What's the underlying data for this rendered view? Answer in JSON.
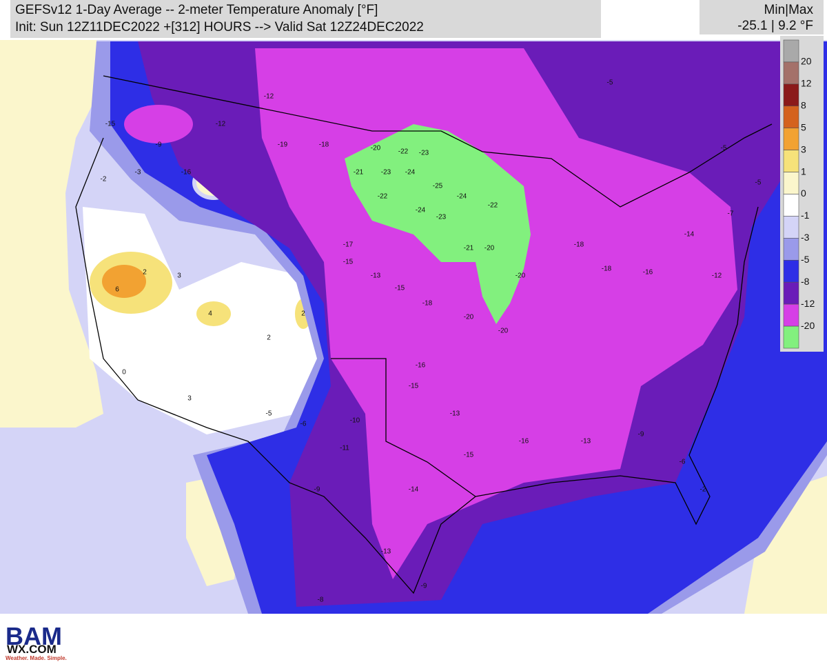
{
  "header": {
    "title": "GEFSv12 1-Day Average -- 2-meter Temperature Anomaly [°F]",
    "subtitle": "Init: Sun 12Z11DEC2022 +[312] HOURS --> Valid Sat 12Z24DEC2022",
    "minmax_label": "Min|Max",
    "minmax_value": "-25.1 | 9.2 °F"
  },
  "colorbar": {
    "colors": [
      "#a9a9a9",
      "#a4716a",
      "#8b1a1a",
      "#d4621e",
      "#f2a232",
      "#f6e27a",
      "#fbf6cc",
      "#ffffff",
      "#d4d4f7",
      "#9a9aea",
      "#2e2ee6",
      "#6a1cb8",
      "#d63fe6",
      "#82f07e"
    ],
    "labels": [
      20,
      12,
      8,
      5,
      3,
      1,
      0,
      -1,
      -3,
      -5,
      -8,
      -12,
      -20
    ]
  },
  "map_labels": [
    -12,
    -19,
    -18,
    -20,
    -22,
    -23,
    -21,
    -23,
    -24,
    -25,
    -24,
    -22,
    -22,
    -24,
    -23,
    -21,
    -20,
    -20,
    -17,
    -15,
    -13,
    -15,
    -18,
    -20,
    -20,
    -18,
    -18,
    -16,
    -14,
    -12,
    -16,
    -15,
    -13,
    -15,
    -14,
    -10,
    -11,
    -6,
    -5,
    -9,
    -13,
    -9,
    -16,
    -13,
    -9,
    -6,
    -2,
    6,
    2,
    3,
    4,
    2,
    2,
    0,
    3,
    -9,
    -3,
    -2,
    -15,
    -16,
    -12,
    -5,
    -5,
    -5,
    -7,
    -8
  ],
  "logo": {
    "name": "BAM",
    "site": "WX.COM",
    "tagline": "Weather. Made. Simple."
  }
}
